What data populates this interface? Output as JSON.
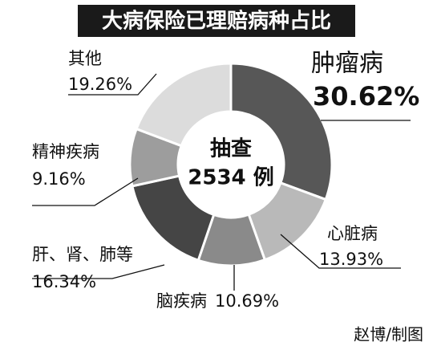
{
  "chart_data": {
    "type": "donut",
    "title": "大病保险已理赔病种占比",
    "center_text": [
      "抽查",
      "2534 例"
    ],
    "categories": [
      "肿瘤病",
      "心脏病",
      "脑疾病",
      "肝、肾、肺等",
      "精神疾病",
      "其他"
    ],
    "values": [
      30.62,
      13.93,
      10.69,
      16.34,
      9.16,
      19.26
    ],
    "value_labels": [
      "30.62%",
      "13.93%",
      "10.69%",
      "16.34%",
      "9.16%",
      "19.26%"
    ],
    "colors": [
      "#575757",
      "#b9b9b9",
      "#8a8a8a",
      "#454545",
      "#9d9d9d",
      "#dcdcdc"
    ],
    "credit": "赵博/制图"
  }
}
